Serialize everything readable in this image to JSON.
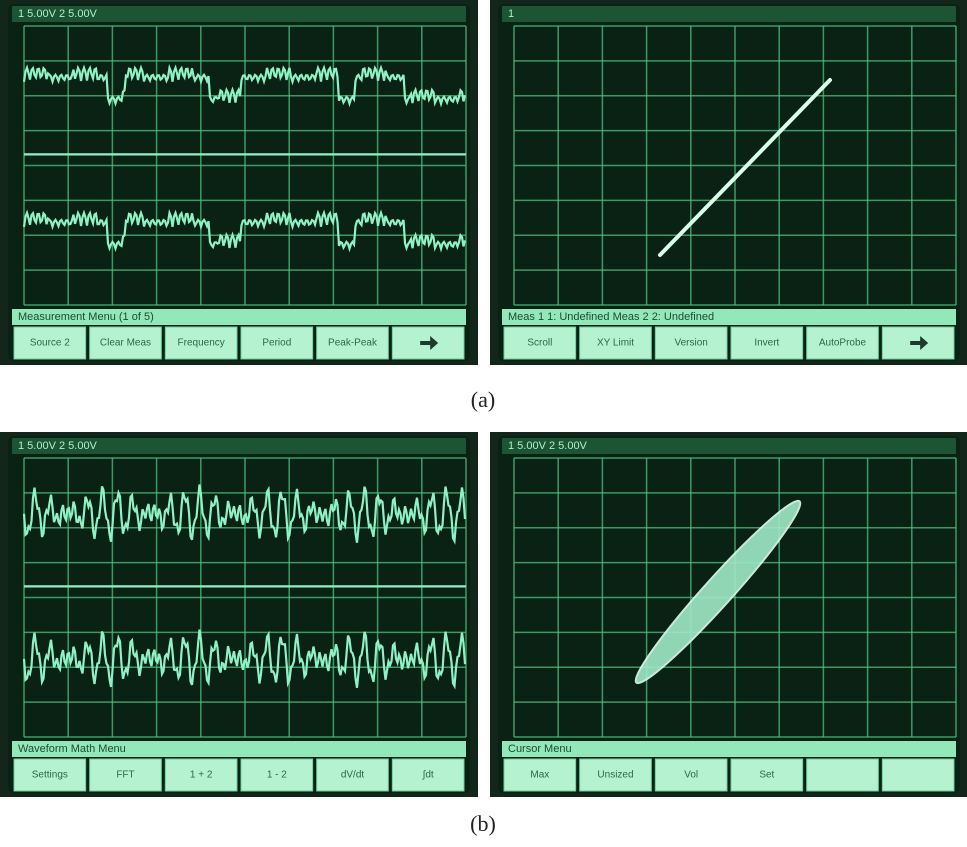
{
  "panels": [
    {
      "label": "(a)",
      "screens": [
        {
          "status": "1 5.00V  2 5.00V",
          "menu_title": "Measurement Menu (1 of 5)",
          "buttons": [
            "Source 2",
            "Clear Meas",
            "Frequency",
            "Period",
            "Peak-Peak"
          ]
        },
        {
          "status": "1",
          "menu_title": "Meas 1 1: Undefined   Meas 2 2: Undefined",
          "buttons": [
            "Scroll",
            "XY Limit",
            "Version",
            "Invert",
            "AutoProbe"
          ]
        }
      ]
    },
    {
      "label": "(b)",
      "screens": [
        {
          "status": "1 5.00V  2 5.00V",
          "menu_title": "Waveform Math Menu",
          "buttons": [
            "Settings",
            "FFT",
            "1 + 2",
            "1 - 2",
            "dV/dt",
            "∫dt"
          ]
        },
        {
          "status": "1 5.00V  2 5.00V",
          "menu_title": "Cursor Menu",
          "buttons": [
            "Max",
            "Unsized",
            "Vol",
            "Set",
            "",
            ""
          ]
        }
      ]
    }
  ]
}
